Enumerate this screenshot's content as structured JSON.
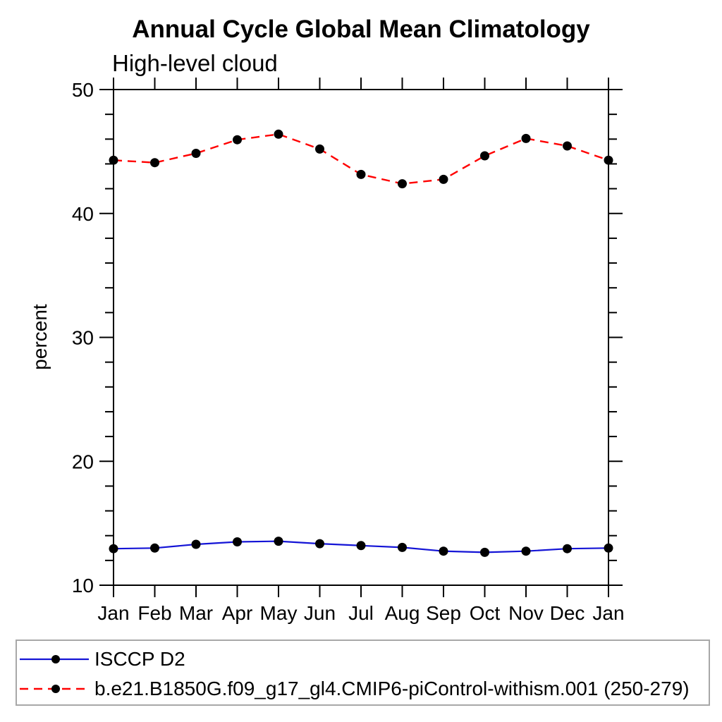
{
  "header": {
    "title": "Annual Cycle Global Mean Climatology",
    "subtitle": "High-level cloud"
  },
  "chart_data": {
    "type": "line",
    "title": "Annual Cycle Global Mean Climatology",
    "subtitle": "High-level cloud",
    "xlabel": "",
    "ylabel": "percent",
    "ylim": [
      10,
      50
    ],
    "y_major_step": 10,
    "y_minor_step": 2,
    "grid": false,
    "legend_position": "bottom box, full width",
    "x_categories": [
      "Jan",
      "Feb",
      "Mar",
      "Apr",
      "May",
      "Jun",
      "Jul",
      "Aug",
      "Sep",
      "Oct",
      "Nov",
      "Dec",
      "Jan"
    ],
    "series": [
      {
        "name": "ISCCP D2",
        "color": "#1414d6",
        "line_style": "solid",
        "marker": "filled-circle",
        "marker_color": "#000000",
        "values": [
          12.95,
          13.0,
          13.3,
          13.5,
          13.55,
          13.35,
          13.2,
          13.05,
          12.75,
          12.65,
          12.75,
          12.95,
          13.0
        ]
      },
      {
        "name": "b.e21.B1850G.f09_g17_gl4.CMIP6-piControl-withism.001 (250-279)",
        "color": "#ff0000",
        "line_style": "dashed",
        "marker": "filled-circle",
        "marker_color": "#000000",
        "values": [
          44.3,
          44.1,
          44.85,
          45.95,
          46.4,
          45.2,
          43.15,
          42.4,
          42.75,
          44.65,
          46.05,
          45.45,
          44.3
        ]
      }
    ],
    "colors": {
      "axis": "#000000",
      "legend_border": "#a8a8a8",
      "background": "#ffffff"
    }
  }
}
